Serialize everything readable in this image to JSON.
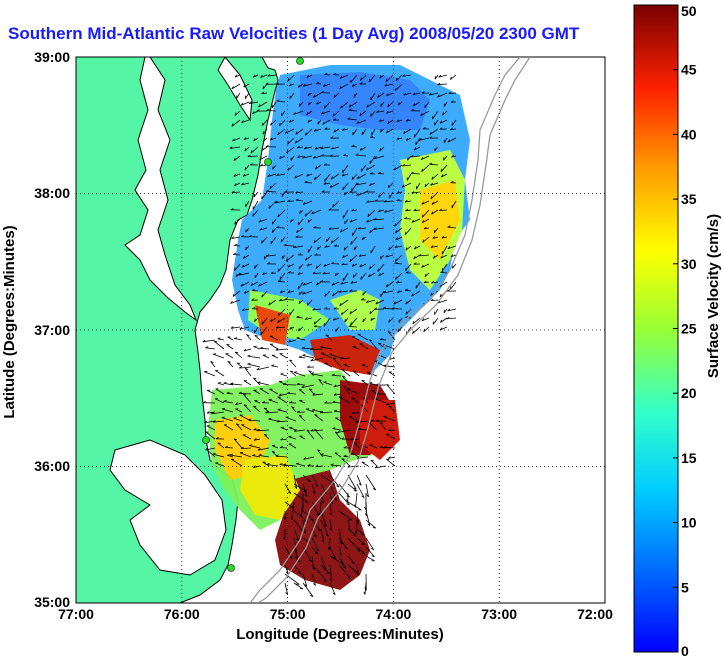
{
  "title": "Southern Mid-Atlantic Raw Velocities (1 Day Avg) 2008/05/20 2300 GMT",
  "map": {
    "xlabel": "Longitude (Degrees:Minutes)",
    "ylabel": "Latitude (Degrees:Minutes)",
    "x_ticks": [
      "77:00",
      "76:00",
      "75:00",
      "74:00",
      "73:00",
      "72:00"
    ],
    "y_ticks": [
      "39:00",
      "38:00",
      "37:00",
      "36:00",
      "35:00"
    ],
    "colors": {
      "land": "#55f5a6",
      "water": "#ffffff",
      "coast": "#000000",
      "bathymetry": "#9a9a9a",
      "station": "#22dd22"
    }
  },
  "colorbar": {
    "label": "Surface Velocity (cm/s)",
    "ticks": [
      "0",
      "5",
      "10",
      "15",
      "20",
      "25",
      "30",
      "35",
      "40",
      "45",
      "50"
    ],
    "min": 0,
    "max": 50
  }
}
